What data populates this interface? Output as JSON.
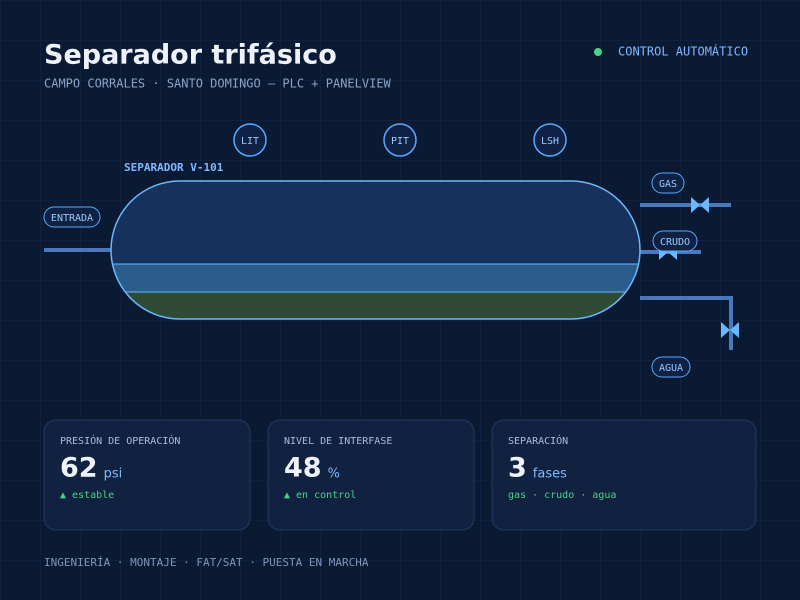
{
  "header": {
    "title": "Separador trifásico",
    "subtitle": "CAMPO CORRALES · SANTO DOMINGO — PLC + PANELVIEW"
  },
  "status": "CONTROL AUTOMÁTICO",
  "instruments": [
    "LIT",
    "PIT",
    "LSH"
  ],
  "vessel": {
    "label": "SEPARADOR V-101"
  },
  "streams": {
    "inlet": "ENTRADA",
    "gas": "GAS",
    "oil": "CRUDO",
    "water": "AGUA"
  },
  "cards": [
    {
      "label": "PRESIÓN DE OPERACIÓN",
      "value": 62,
      "unit": "psi",
      "note": "▲ estable"
    },
    {
      "label": "NIVEL DE INTERFASE",
      "value": 48,
      "unit": "%",
      "note": "▲ en control"
    },
    {
      "label": "SEPARACIÓN",
      "value": 3,
      "unit": "fases",
      "note": "gas · crudo · agua"
    }
  ],
  "footer": "INGENIERÍA · MONTAJE · FAT/SAT · PUESTA EN MARCHA"
}
